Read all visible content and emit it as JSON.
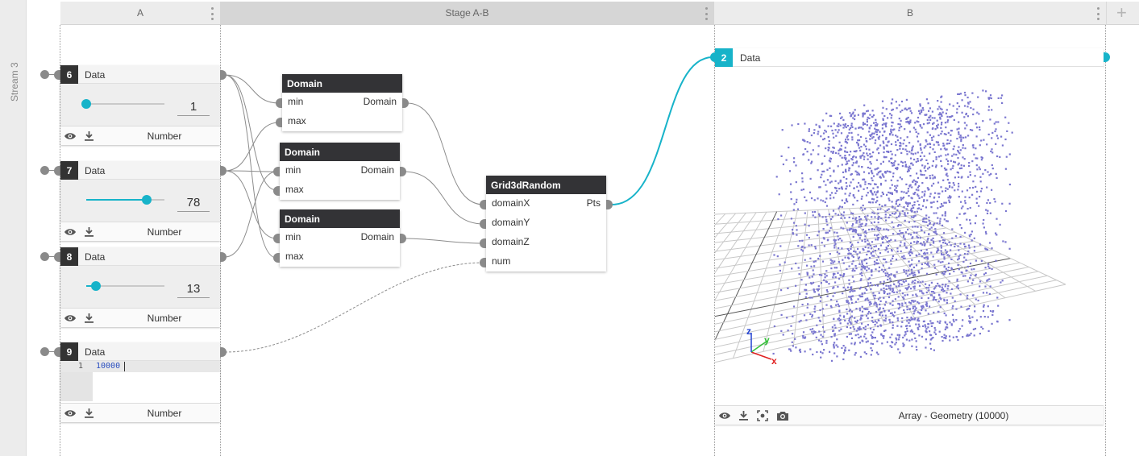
{
  "stream": {
    "label": "Stream 3"
  },
  "columns": [
    {
      "name": "A"
    },
    {
      "name": "Stage A-B"
    },
    {
      "name": "B"
    }
  ],
  "data_nodes": [
    {
      "id": "6",
      "title": "Data",
      "value": "1",
      "slider_fraction": 0.0,
      "type": "Number"
    },
    {
      "id": "7",
      "title": "Data",
      "value": "78",
      "slider_fraction": 0.77,
      "type": "Number"
    },
    {
      "id": "8",
      "title": "Data",
      "value": "13",
      "slider_fraction": 0.12,
      "type": "Number"
    },
    {
      "id": "9",
      "title": "Data",
      "code_line_number": "1",
      "code_text": "10000",
      "type": "Number"
    }
  ],
  "domain_nodes": [
    {
      "title": "Domain",
      "in1": "min",
      "in2": "max",
      "out": "Domain"
    },
    {
      "title": "Domain",
      "in1": "min",
      "in2": "max",
      "out": "Domain"
    },
    {
      "title": "Domain",
      "in1": "min",
      "in2": "max",
      "out": "Domain"
    }
  ],
  "grid_node": {
    "title": "Grid3dRandom",
    "inputs": [
      "domainX",
      "domainY",
      "domainZ",
      "num"
    ],
    "output": "Pts"
  },
  "output_node": {
    "id": "2",
    "title": "Data",
    "type": "Array - Geometry (10000)"
  },
  "axes": {
    "x": "x",
    "y": "y",
    "z": "z"
  },
  "colors": {
    "accent": "#17b3c9",
    "node_header": "#333336",
    "points": "#7b77d0",
    "axis_x": "#e02020",
    "axis_y": "#35c03a",
    "axis_z": "#2040d0"
  }
}
